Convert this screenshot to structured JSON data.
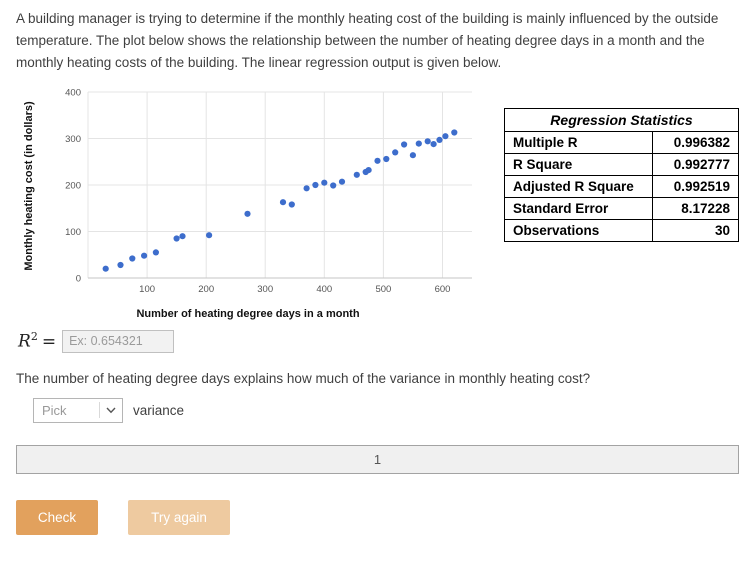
{
  "intro": {
    "text": "A building manager is trying to determine if the monthly heating cost of the building is mainly influenced by the outside temperature. The plot below shows the relationship between the number of heating degree days in a month and the monthly heating costs of the building. The linear regression output is given below."
  },
  "chart_data": {
    "type": "scatter",
    "title": "",
    "xlabel": "Number of heating degree days in a month",
    "ylabel": "Monthly heating cost (in dollars)",
    "xlim": [
      0,
      650
    ],
    "ylim": [
      0,
      400
    ],
    "x_ticks": [
      100,
      200,
      300,
      400,
      500,
      600
    ],
    "y_ticks": [
      0,
      100,
      200,
      300,
      400
    ],
    "grid": true,
    "legend": false,
    "point_color": "#3d6dcc",
    "points": [
      [
        30,
        20
      ],
      [
        55,
        28
      ],
      [
        75,
        42
      ],
      [
        95,
        48
      ],
      [
        115,
        55
      ],
      [
        150,
        85
      ],
      [
        160,
        90
      ],
      [
        205,
        92
      ],
      [
        270,
        138
      ],
      [
        330,
        163
      ],
      [
        345,
        158
      ],
      [
        370,
        193
      ],
      [
        385,
        200
      ],
      [
        400,
        205
      ],
      [
        415,
        199
      ],
      [
        430,
        207
      ],
      [
        455,
        222
      ],
      [
        470,
        228
      ],
      [
        475,
        232
      ],
      [
        490,
        252
      ],
      [
        505,
        256
      ],
      [
        520,
        270
      ],
      [
        535,
        287
      ],
      [
        550,
        264
      ],
      [
        560,
        289
      ],
      [
        575,
        294
      ],
      [
        585,
        288
      ],
      [
        595,
        297
      ],
      [
        605,
        305
      ],
      [
        620,
        313
      ]
    ]
  },
  "regression_table": {
    "title": "Regression Statistics",
    "rows": [
      {
        "label": "Multiple R",
        "value": "0.996382"
      },
      {
        "label": "R Square",
        "value": "0.992777"
      },
      {
        "label": "Adjusted R Square",
        "value": "0.992519"
      },
      {
        "label": "Standard Error",
        "value": "8.17228"
      },
      {
        "label": "Observations",
        "value": "30"
      }
    ]
  },
  "answer": {
    "r2_base": "R",
    "r2_exp": "2",
    "eq": "=",
    "placeholder": "Ex: 0.654321"
  },
  "question": {
    "text": "The number of heating degree days explains how much of the variance in monthly heating cost?"
  },
  "pick": {
    "selected": "Pick",
    "suffix_label": "variance"
  },
  "section_bar": {
    "label": "1"
  },
  "buttons": {
    "check": "Check",
    "try_again": "Try again"
  },
  "colors": {
    "check_bg": "#e2a15d",
    "try_again_bg": "#eecaa0",
    "point": "#3d6dcc",
    "gridline": "#e4e4e4"
  }
}
